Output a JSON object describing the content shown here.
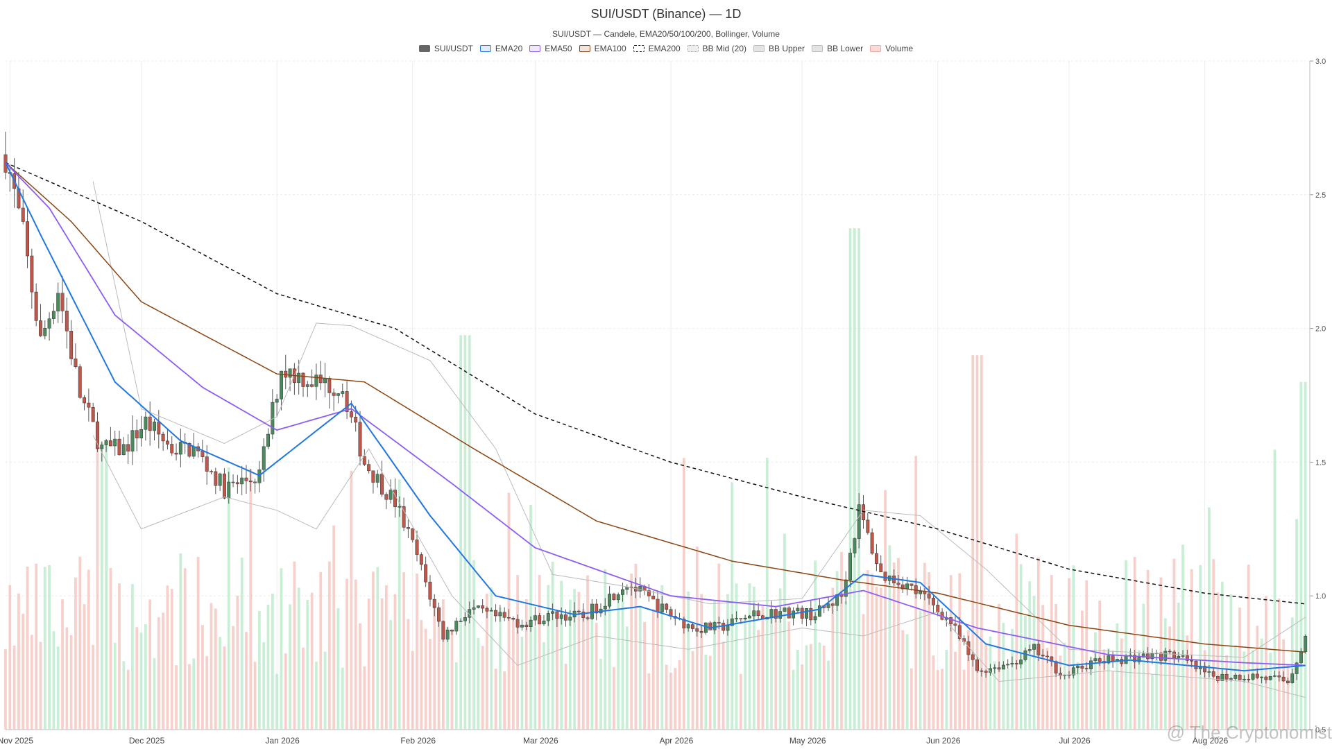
{
  "chart_data": {
    "type": "candlestick",
    "title": "SUI/USDT (Binance) — 1D",
    "subtitle": "SUI/USDT — Candele, EMA20/50/100/200, Bollinger, Volume",
    "watermark": "@ The Cryptonomist",
    "y_axis": {
      "ticks": [
        3.0,
        2.5,
        2.0,
        1.5,
        1.0,
        0.5
      ],
      "ylim": [
        0.5,
        3.0
      ],
      "position": "right"
    },
    "x_axis": {
      "ticks": [
        "Nov 2025",
        "Dec 2025",
        "Jan 2026",
        "Feb 2026",
        "Mar 2026",
        "Apr 2026",
        "May 2026",
        "Jun 2026",
        "Jul 2026",
        "Aug 2026"
      ]
    },
    "legend": [
      {
        "name": "SUI/USDT",
        "color": "#666666",
        "style": "solid-fill"
      },
      {
        "name": "EMA20",
        "color": "#1f77e4",
        "style": "line"
      },
      {
        "name": "EMA50",
        "color": "#8b5cf6",
        "style": "line"
      },
      {
        "name": "EMA100",
        "color": "#8b4513",
        "style": "line"
      },
      {
        "name": "EMA200",
        "color": "#111111",
        "style": "dashed"
      },
      {
        "name": "BB Mid (20)",
        "color": "#999999",
        "style": "dotted"
      },
      {
        "name": "BB Upper",
        "color": "#bbbbbb",
        "style": "box"
      },
      {
        "name": "BB Lower",
        "color": "#bbbbbb",
        "style": "box"
      },
      {
        "name": "Volume",
        "color": "#f4a6a0",
        "style": "box"
      }
    ],
    "colors": {
      "up": "#4a8a5c",
      "down": "#c0574a",
      "vol_up": "#b7e8c8",
      "vol_down": "#f6c0ba",
      "grid": "#ececec"
    },
    "price_path": [
      [
        "2025-10-31",
        2.65
      ],
      [
        "2025-11-04",
        2.35
      ],
      [
        "2025-11-08",
        1.95
      ],
      [
        "2025-11-12",
        2.15
      ],
      [
        "2025-11-17",
        1.75
      ],
      [
        "2025-11-22",
        1.55
      ],
      [
        "2025-11-27",
        1.55
      ],
      [
        "2025-12-02",
        1.65
      ],
      [
        "2025-12-08",
        1.55
      ],
      [
        "2025-12-13",
        1.55
      ],
      [
        "2025-12-20",
        1.4
      ],
      [
        "2025-12-28",
        1.45
      ],
      [
        "2026-01-02",
        1.85
      ],
      [
        "2026-01-10",
        1.8
      ],
      [
        "2026-01-16",
        1.78
      ],
      [
        "2026-01-21",
        1.5
      ],
      [
        "2026-01-28",
        1.35
      ],
      [
        "2026-02-02",
        1.15
      ],
      [
        "2026-02-08",
        0.85
      ],
      [
        "2026-02-14",
        0.95
      ],
      [
        "2026-02-20",
        0.92
      ],
      [
        "2026-02-26",
        0.9
      ],
      [
        "2026-03-06",
        0.93
      ],
      [
        "2026-03-12",
        0.92
      ],
      [
        "2026-03-22",
        1.05
      ],
      [
        "2026-03-30",
        0.95
      ],
      [
        "2026-04-06",
        0.88
      ],
      [
        "2026-04-12",
        0.88
      ],
      [
        "2026-04-20",
        0.93
      ],
      [
        "2026-04-28",
        0.94
      ],
      [
        "2026-05-04",
        0.93
      ],
      [
        "2026-05-10",
        1.0
      ],
      [
        "2026-05-14",
        1.32
      ],
      [
        "2026-05-19",
        1.08
      ],
      [
        "2026-05-24",
        1.05
      ],
      [
        "2026-05-30",
        0.98
      ],
      [
        "2026-06-04",
        0.9
      ],
      [
        "2026-06-10",
        0.72
      ],
      [
        "2026-06-18",
        0.75
      ],
      [
        "2026-06-23",
        0.8
      ],
      [
        "2026-06-30",
        0.7
      ],
      [
        "2026-07-06",
        0.75
      ],
      [
        "2026-07-15",
        0.77
      ],
      [
        "2026-07-25",
        0.78
      ],
      [
        "2026-08-02",
        0.7
      ],
      [
        "2026-08-12",
        0.7
      ],
      [
        "2026-08-20",
        0.68
      ],
      [
        "2026-08-22",
        0.76
      ],
      [
        "2026-08-24",
        0.85
      ]
    ],
    "ema200_path": [
      [
        "2025-10-31",
        2.62
      ],
      [
        "2025-12-01",
        2.4
      ],
      [
        "2026-01-01",
        2.13
      ],
      [
        "2026-01-28",
        2.0
      ],
      [
        "2026-03-01",
        1.68
      ],
      [
        "2026-04-01",
        1.5
      ],
      [
        "2026-05-01",
        1.37
      ],
      [
        "2026-06-01",
        1.25
      ],
      [
        "2026-07-01",
        1.1
      ],
      [
        "2026-08-01",
        1.01
      ],
      [
        "2026-08-24",
        0.97
      ]
    ],
    "ema100_path": [
      [
        "2025-10-31",
        2.62
      ],
      [
        "2025-11-15",
        2.4
      ],
      [
        "2025-12-01",
        2.1
      ],
      [
        "2026-01-01",
        1.83
      ],
      [
        "2026-01-21",
        1.8
      ],
      [
        "2026-02-15",
        1.55
      ],
      [
        "2026-03-15",
        1.28
      ],
      [
        "2026-04-15",
        1.13
      ],
      [
        "2026-05-10",
        1.06
      ],
      [
        "2026-06-01",
        1.01
      ],
      [
        "2026-07-01",
        0.89
      ],
      [
        "2026-08-01",
        0.82
      ],
      [
        "2026-08-24",
        0.79
      ]
    ],
    "ema50_path": [
      [
        "2025-10-31",
        2.62
      ],
      [
        "2025-11-10",
        2.45
      ],
      [
        "2025-11-25",
        2.05
      ],
      [
        "2025-12-15",
        1.78
      ],
      [
        "2026-01-01",
        1.62
      ],
      [
        "2026-01-18",
        1.7
      ],
      [
        "2026-02-10",
        1.42
      ],
      [
        "2026-03-01",
        1.18
      ],
      [
        "2026-04-01",
        1.0
      ],
      [
        "2026-04-25",
        0.96
      ],
      [
        "2026-05-15",
        1.02
      ],
      [
        "2026-06-10",
        0.88
      ],
      [
        "2026-07-10",
        0.78
      ],
      [
        "2026-08-10",
        0.75
      ],
      [
        "2026-08-24",
        0.74
      ]
    ],
    "ema20_path": [
      [
        "2025-10-31",
        2.62
      ],
      [
        "2025-11-08",
        2.35
      ],
      [
        "2025-11-25",
        1.8
      ],
      [
        "2025-12-10",
        1.58
      ],
      [
        "2025-12-28",
        1.45
      ],
      [
        "2026-01-18",
        1.72
      ],
      [
        "2026-02-05",
        1.3
      ],
      [
        "2026-02-20",
        1.0
      ],
      [
        "2026-03-10",
        0.93
      ],
      [
        "2026-03-25",
        0.96
      ],
      [
        "2026-04-10",
        0.88
      ],
      [
        "2026-05-05",
        0.95
      ],
      [
        "2026-05-15",
        1.08
      ],
      [
        "2026-05-28",
        1.05
      ],
      [
        "2026-06-12",
        0.82
      ],
      [
        "2026-07-01",
        0.74
      ],
      [
        "2026-07-15",
        0.76
      ],
      [
        "2026-08-10",
        0.72
      ],
      [
        "2026-08-24",
        0.74
      ]
    ],
    "bb_upper_path": [
      [
        "2025-11-20",
        2.55
      ],
      [
        "2025-12-01",
        1.7
      ],
      [
        "2025-12-20",
        1.57
      ],
      [
        "2026-01-01",
        1.67
      ],
      [
        "2026-01-10",
        2.02
      ],
      [
        "2026-01-18",
        2.01
      ],
      [
        "2026-02-05",
        1.88
      ],
      [
        "2026-02-20",
        1.55
      ],
      [
        "2026-03-05",
        1.08
      ],
      [
        "2026-03-20",
        1.04
      ],
      [
        "2026-04-10",
        0.97
      ],
      [
        "2026-05-01",
        0.99
      ],
      [
        "2026-05-15",
        1.32
      ],
      [
        "2026-05-28",
        1.3
      ],
      [
        "2026-06-12",
        1.1
      ],
      [
        "2026-07-01",
        0.8
      ],
      [
        "2026-08-10",
        0.77
      ],
      [
        "2026-08-24",
        0.92
      ]
    ],
    "bb_lower_path": [
      [
        "2025-11-20",
        1.6
      ],
      [
        "2025-12-01",
        1.25
      ],
      [
        "2025-12-20",
        1.37
      ],
      [
        "2026-01-01",
        1.32
      ],
      [
        "2026-01-10",
        1.25
      ],
      [
        "2026-01-22",
        1.55
      ],
      [
        "2026-02-10",
        1.0
      ],
      [
        "2026-02-25",
        0.74
      ],
      [
        "2026-03-15",
        0.85
      ],
      [
        "2026-04-05",
        0.8
      ],
      [
        "2026-05-01",
        0.88
      ],
      [
        "2026-05-15",
        0.85
      ],
      [
        "2026-06-01",
        0.94
      ],
      [
        "2026-06-15",
        0.68
      ],
      [
        "2026-07-10",
        0.72
      ],
      [
        "2026-08-10",
        0.68
      ],
      [
        "2026-08-24",
        0.62
      ]
    ],
    "volume_spikes": [
      [
        "2025-11-22",
        0.43
      ],
      [
        "2026-02-13",
        0.59
      ],
      [
        "2026-05-13",
        0.75
      ],
      [
        "2026-06-10",
        0.56
      ],
      [
        "2026-08-23",
        0.52
      ]
    ]
  }
}
